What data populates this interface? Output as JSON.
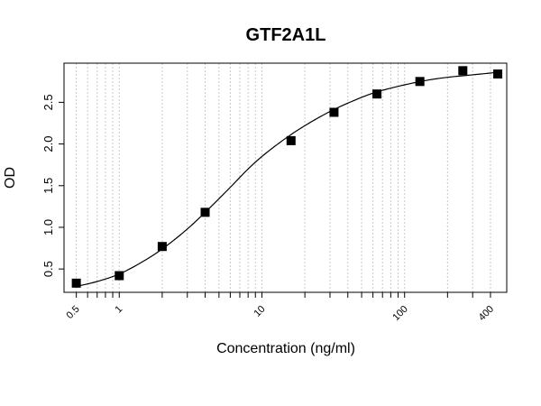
{
  "chart_data": {
    "type": "scatter",
    "title": "GTF2A1L",
    "xlabel": "Concentration (ng/ml)",
    "ylabel": "OD",
    "x_scale": "log",
    "xlim": [
      0.41,
      520
    ],
    "ylim": [
      0.22,
      2.97
    ],
    "x_tick_labels": [
      "0.5",
      "1",
      "10",
      "100",
      "400"
    ],
    "x_tick_values": [
      0.5,
      1,
      10,
      100,
      400
    ],
    "x_grid_values": [
      0.5,
      0.6,
      0.7,
      0.8,
      0.9,
      1,
      2,
      3,
      4,
      5,
      6,
      7,
      8,
      9,
      10,
      20,
      30,
      40,
      50,
      60,
      70,
      80,
      90,
      100,
      200,
      300,
      400
    ],
    "y_ticks": [
      0.5,
      1.0,
      1.5,
      2.0,
      2.5
    ],
    "y_tick_labels": [
      "0.5",
      "1.0",
      "1.5",
      "2.0",
      "2.5"
    ],
    "grid": "vertical dotted",
    "series": [
      {
        "marker": "square",
        "color": "#000000",
        "x": [
          0.5,
          1,
          2,
          4,
          16,
          32,
          64,
          128,
          256,
          450
        ],
        "y": [
          0.33,
          0.42,
          0.77,
          1.18,
          2.04,
          2.38,
          2.6,
          2.75,
          2.88,
          2.84
        ]
      }
    ],
    "fit_curve": {
      "model": "4PL",
      "x": [
        0.5,
        0.7,
        1,
        1.5,
        2,
        3,
        4,
        6,
        8,
        10,
        15,
        20,
        30,
        40,
        60,
        80,
        100,
        150,
        200,
        300,
        450
      ],
      "y": [
        0.29,
        0.35,
        0.44,
        0.6,
        0.74,
        0.98,
        1.18,
        1.48,
        1.7,
        1.85,
        2.08,
        2.22,
        2.39,
        2.49,
        2.61,
        2.67,
        2.71,
        2.77,
        2.8,
        2.83,
        2.86
      ]
    }
  }
}
